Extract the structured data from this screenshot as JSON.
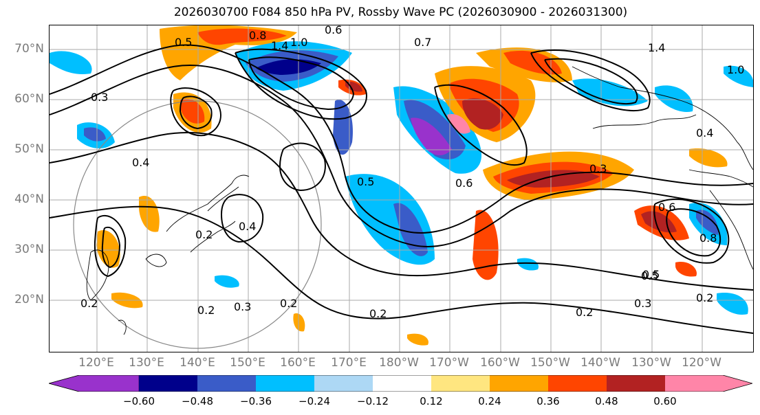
{
  "title": "2026030700 F084 850 hPa PV, Rossby Wave PC (2026030900 - 2026031300)",
  "lat_labels": [
    "70°N",
    "60°N",
    "50°N",
    "40°N",
    "30°N",
    "20°N"
  ],
  "lon_labels": [
    "120°E",
    "130°E",
    "140°E",
    "150°E",
    "160°E",
    "170°E",
    "180°W",
    "170°W",
    "160°W",
    "150°W",
    "140°W",
    "130°W",
    "120°W"
  ],
  "contour_labels": [
    "0.5",
    "0.8",
    "1.4",
    "1.0",
    "0.6",
    "0.6",
    "0.3",
    "0.5",
    "0.2",
    "0.4",
    "0.2",
    "0.3",
    "0.2",
    "0.2",
    "0.2",
    "0.5",
    "0.6",
    "0.8",
    "0.3",
    "0.5",
    "0.3",
    "0.2",
    "0.4",
    "0.2",
    "1.4",
    "1.0",
    "0.4",
    "0.7"
  ],
  "colorbar": {
    "ticks": [
      "−0.60",
      "−0.48",
      "−0.36",
      "−0.24",
      "−0.12",
      "0.12",
      "0.24",
      "0.36",
      "0.48",
      "0.60"
    ],
    "colors": [
      "#9932cc",
      "#00008b",
      "#3a5cc8",
      "#00bfff",
      "#add8f5",
      "#ffffff",
      "#ffe680",
      "#ffa500",
      "#ff4500",
      "#b22222",
      "#ff85a8"
    ]
  }
}
